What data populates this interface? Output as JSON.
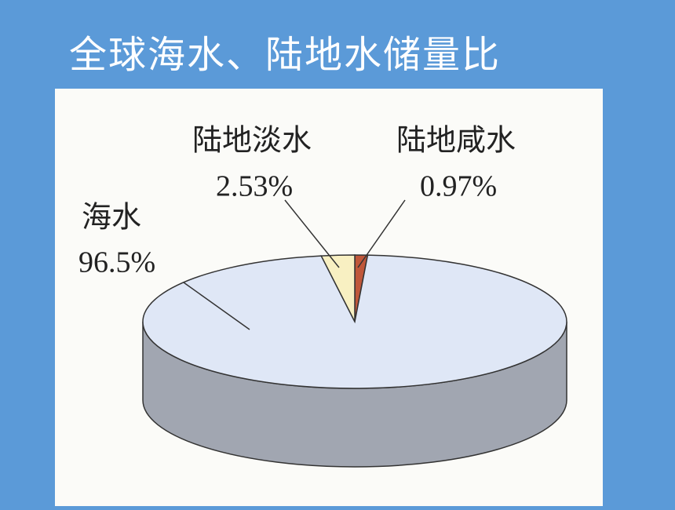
{
  "title": "全球海水、陆地水储量比",
  "chart_data": {
    "type": "pie",
    "categories": [
      "陆地咸水",
      "海水",
      "陆地淡水"
    ],
    "values": [
      0.97,
      96.5,
      2.53
    ],
    "value_labels": [
      "0.97%",
      "96.5%",
      "2.53%"
    ],
    "colors": [
      "#c0573a",
      "#dfe7f6",
      "#f8f0c2"
    ]
  }
}
